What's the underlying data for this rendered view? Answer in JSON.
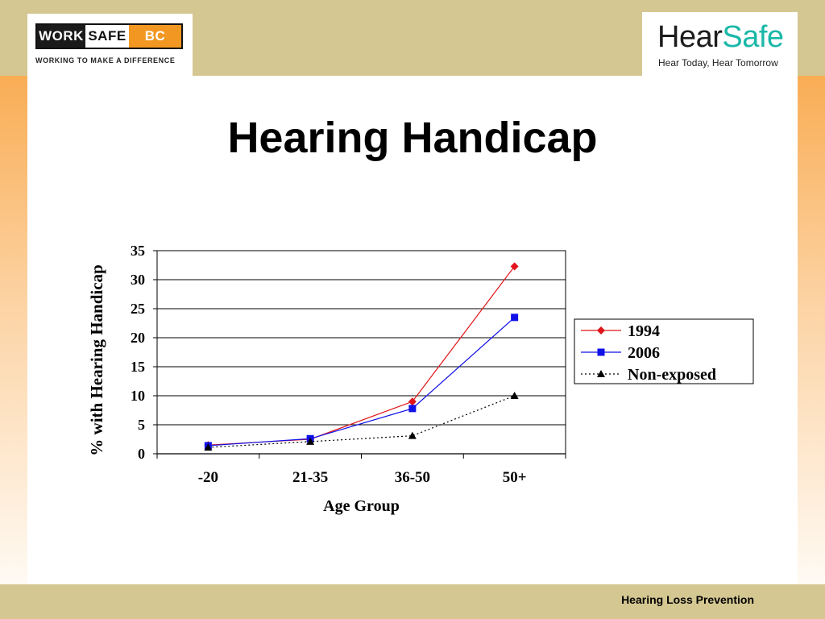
{
  "header": {
    "left_logo": {
      "segments": [
        "WORK",
        "SAFE",
        "BC"
      ],
      "tagline": "WORKING TO MAKE A DIFFERENCE"
    },
    "right_logo": {
      "word_part1": "Hear",
      "word_part2": "Safe",
      "tagline": "Hear Today, Hear Tomorrow"
    }
  },
  "slide": {
    "title": "Hearing Handicap"
  },
  "footer": {
    "text": "Hearing Loss Prevention"
  },
  "colors": {
    "top_band": "#d4c791",
    "side_band_top": "#f9ad55",
    "logo_orange": "#f29722",
    "logo_teal": "#1ab8a8",
    "series_1994": "#e0141a",
    "series_2006": "#1010e8",
    "series_nonexposed": "#000000"
  },
  "chart_data": {
    "type": "line",
    "title": "",
    "xlabel": "Age Group",
    "ylabel": "% with Hearing Handicap",
    "categories": [
      "-20",
      "21-35",
      "36-50",
      "50+"
    ],
    "ylim": [
      0,
      35
    ],
    "yticks": [
      0,
      5,
      10,
      15,
      20,
      25,
      30,
      35
    ],
    "grid": true,
    "legend_position": "right",
    "series": [
      {
        "name": "1994",
        "values": [
          1.5,
          2.5,
          9,
          32.3
        ],
        "color": "#e0141a",
        "marker": "diamond",
        "line": "solid"
      },
      {
        "name": "2006",
        "values": [
          1.4,
          2.6,
          7.8,
          23.5
        ],
        "color": "#1010e8",
        "marker": "square",
        "line": "solid"
      },
      {
        "name": "Non-exposed",
        "values": [
          1.1,
          2.1,
          3.1,
          10
        ],
        "color": "#000000",
        "marker": "triangle",
        "line": "dotted"
      }
    ]
  }
}
